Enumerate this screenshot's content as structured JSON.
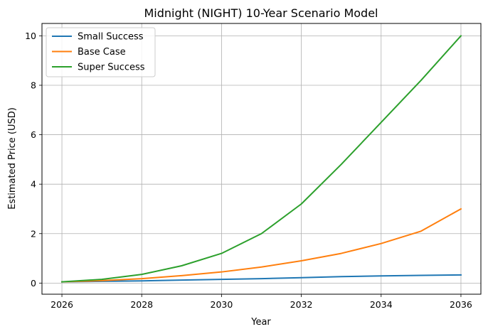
{
  "chart_data": {
    "type": "line",
    "title": "Midnight (NIGHT) 10-Year Scenario Model",
    "xlabel": "Year",
    "ylabel": "Estimated Price (USD)",
    "xlim": [
      2025.5,
      2036.5
    ],
    "ylim": [
      -0.45,
      10.5
    ],
    "xticks": [
      2026,
      2028,
      2030,
      2032,
      2034,
      2036
    ],
    "yticks": [
      0,
      2,
      4,
      6,
      8,
      10
    ],
    "grid": true,
    "legend_position": "top-left",
    "x": [
      2026,
      2027,
      2028,
      2029,
      2030,
      2031,
      2032,
      2033,
      2034,
      2035,
      2036
    ],
    "series": [
      {
        "name": "Small Success",
        "color": "#1f77b4",
        "values": [
          0.05,
          0.07,
          0.09,
          0.12,
          0.15,
          0.18,
          0.22,
          0.26,
          0.29,
          0.31,
          0.33
        ]
      },
      {
        "name": "Base Case",
        "color": "#ff7f0e",
        "values": [
          0.05,
          0.1,
          0.18,
          0.3,
          0.45,
          0.65,
          0.9,
          1.2,
          1.6,
          2.1,
          3.0
        ]
      },
      {
        "name": "Super Success",
        "color": "#2ca02c",
        "values": [
          0.05,
          0.15,
          0.35,
          0.7,
          1.2,
          2.0,
          3.2,
          4.8,
          6.5,
          8.2,
          10.0
        ]
      }
    ]
  }
}
